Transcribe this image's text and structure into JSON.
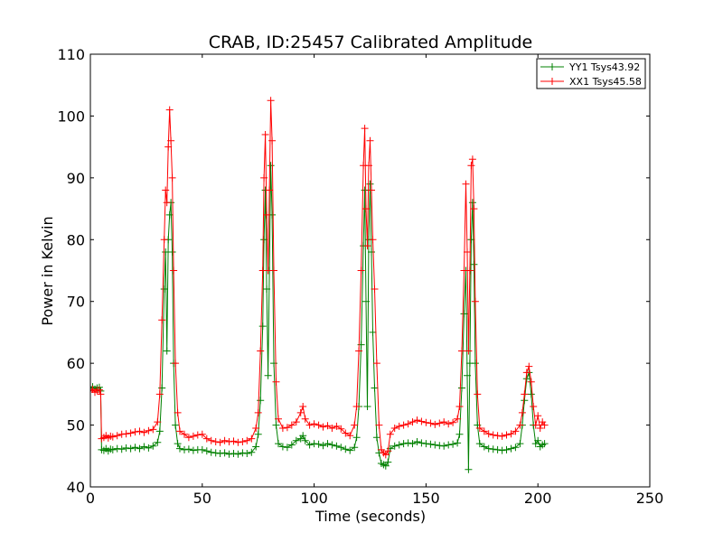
{
  "chart_data": {
    "type": "line",
    "title": "CRAB, ID:25457 Calibrated Amplitude",
    "xlabel": "Time (seconds)",
    "ylabel": "Power in Kelvin",
    "xlim": [
      0,
      250
    ],
    "ylim": [
      40,
      110
    ],
    "xticks": [
      0,
      50,
      100,
      150,
      200,
      250
    ],
    "yticks": [
      40,
      50,
      60,
      70,
      80,
      90,
      100,
      110
    ],
    "grid": false,
    "legend_position": "top-right",
    "marker": "+",
    "series": [
      {
        "name": "YY1 Tsys43.92",
        "color": "#008000",
        "points": [
          [
            0,
            56.0
          ],
          [
            1,
            56.2
          ],
          [
            2,
            55.8
          ],
          [
            3,
            56.0
          ],
          [
            4,
            56.1
          ],
          [
            4.6,
            55.5
          ],
          [
            5,
            46.0
          ],
          [
            6,
            45.9
          ],
          [
            7,
            46.2
          ],
          [
            8,
            45.8
          ],
          [
            9,
            46.1
          ],
          [
            10,
            46.0
          ],
          [
            12,
            46.2
          ],
          [
            14,
            46.1
          ],
          [
            16,
            46.3
          ],
          [
            18,
            46.2
          ],
          [
            20,
            46.4
          ],
          [
            22,
            46.2
          ],
          [
            24,
            46.5
          ],
          [
            26,
            46.3
          ],
          [
            28,
            46.6
          ],
          [
            30,
            47.2
          ],
          [
            31,
            49.0
          ],
          [
            32,
            56.0
          ],
          [
            33,
            72.0
          ],
          [
            33.6,
            78.0
          ],
          [
            34.2,
            62.0
          ],
          [
            34.8,
            80.0
          ],
          [
            35.4,
            84.0
          ],
          [
            36,
            86.0
          ],
          [
            36.6,
            78.0
          ],
          [
            37.2,
            60.0
          ],
          [
            38,
            50.0
          ],
          [
            39,
            47.0
          ],
          [
            40,
            46.2
          ],
          [
            42,
            46.0
          ],
          [
            44,
            46.1
          ],
          [
            46,
            45.9
          ],
          [
            48,
            46.0
          ],
          [
            50,
            46.0
          ],
          [
            52,
            45.8
          ],
          [
            54,
            45.6
          ],
          [
            56,
            45.5
          ],
          [
            58,
            45.4
          ],
          [
            60,
            45.5
          ],
          [
            62,
            45.3
          ],
          [
            64,
            45.4
          ],
          [
            66,
            45.3
          ],
          [
            68,
            45.5
          ],
          [
            70,
            45.4
          ],
          [
            72,
            45.6
          ],
          [
            74,
            46.5
          ],
          [
            75,
            48.5
          ],
          [
            76,
            54.0
          ],
          [
            77,
            66.0
          ],
          [
            77.6,
            80.0
          ],
          [
            78.2,
            88.0
          ],
          [
            78.8,
            72.0
          ],
          [
            79.4,
            58.0
          ],
          [
            80,
            75.0
          ],
          [
            80.6,
            92.0
          ],
          [
            81.2,
            84.0
          ],
          [
            82,
            60.0
          ],
          [
            83,
            50.0
          ],
          [
            84,
            47.0
          ],
          [
            86,
            46.5
          ],
          [
            88,
            46.4
          ],
          [
            90,
            46.8
          ],
          [
            92,
            47.5
          ],
          [
            94,
            47.8
          ],
          [
            95,
            48.3
          ],
          [
            96,
            47.5
          ],
          [
            98,
            46.8
          ],
          [
            100,
            47.0
          ],
          [
            102,
            46.9
          ],
          [
            104,
            46.7
          ],
          [
            106,
            47.0
          ],
          [
            108,
            46.8
          ],
          [
            110,
            46.6
          ],
          [
            112,
            46.4
          ],
          [
            114,
            46.1
          ],
          [
            116,
            45.9
          ],
          [
            118,
            46.4
          ],
          [
            119,
            48.0
          ],
          [
            120,
            53.0
          ],
          [
            121,
            63.0
          ],
          [
            122,
            79.0
          ],
          [
            122.6,
            88.0
          ],
          [
            123.2,
            70.0
          ],
          [
            123.8,
            53.0
          ],
          [
            124.4,
            80.0
          ],
          [
            125,
            89.0
          ],
          [
            125.6,
            78.0
          ],
          [
            126.2,
            65.0
          ],
          [
            127,
            56.0
          ],
          [
            128,
            48.0
          ],
          [
            129,
            45.5
          ],
          [
            130,
            43.8
          ],
          [
            131,
            43.6
          ],
          [
            132,
            43.4
          ],
          [
            133,
            44.0
          ],
          [
            134,
            46.2
          ],
          [
            136,
            46.6
          ],
          [
            138,
            46.8
          ],
          [
            140,
            47.0
          ],
          [
            142,
            47.1
          ],
          [
            144,
            47.0
          ],
          [
            146,
            47.3
          ],
          [
            148,
            47.1
          ],
          [
            150,
            47.0
          ],
          [
            152,
            46.9
          ],
          [
            154,
            46.8
          ],
          [
            156,
            46.7
          ],
          [
            158,
            46.6
          ],
          [
            160,
            46.8
          ],
          [
            162,
            46.9
          ],
          [
            164,
            47.1
          ],
          [
            165,
            48.5
          ],
          [
            166,
            56.0
          ],
          [
            167,
            68.0
          ],
          [
            167.8,
            75.0
          ],
          [
            168.4,
            58.0
          ],
          [
            169,
            42.8
          ],
          [
            169.6,
            60.0
          ],
          [
            170.2,
            80.0
          ],
          [
            170.8,
            86.0
          ],
          [
            171.4,
            76.0
          ],
          [
            172,
            60.0
          ],
          [
            173,
            50.0
          ],
          [
            174,
            47.0
          ],
          [
            176,
            46.5
          ],
          [
            178,
            46.2
          ],
          [
            180,
            46.1
          ],
          [
            182,
            46.0
          ],
          [
            184,
            45.9
          ],
          [
            186,
            46.0
          ],
          [
            188,
            46.2
          ],
          [
            190,
            46.4
          ],
          [
            192,
            47.0
          ],
          [
            193,
            50.0
          ],
          [
            194,
            54.0
          ],
          [
            195,
            57.5
          ],
          [
            196,
            58.5
          ],
          [
            197,
            55.0
          ],
          [
            198,
            50.0
          ],
          [
            199,
            47.0
          ],
          [
            200,
            47.5
          ],
          [
            201,
            46.5
          ],
          [
            202,
            46.8
          ],
          [
            203,
            47.0
          ]
        ]
      },
      {
        "name": "XX1 Tsys45.58",
        "color": "#ff0000",
        "points": [
          [
            0,
            55.5
          ],
          [
            1,
            55.8
          ],
          [
            2,
            55.3
          ],
          [
            3,
            55.6
          ],
          [
            4,
            55.7
          ],
          [
            4.6,
            55.0
          ],
          [
            5,
            47.8
          ],
          [
            6,
            48.0
          ],
          [
            7,
            48.3
          ],
          [
            8,
            47.9
          ],
          [
            9,
            48.2
          ],
          [
            10,
            48.1
          ],
          [
            12,
            48.3
          ],
          [
            14,
            48.5
          ],
          [
            16,
            48.6
          ],
          [
            18,
            48.7
          ],
          [
            20,
            48.9
          ],
          [
            22,
            49.0
          ],
          [
            24,
            48.8
          ],
          [
            26,
            49.1
          ],
          [
            28,
            49.3
          ],
          [
            30,
            50.5
          ],
          [
            31,
            55.0
          ],
          [
            32,
            67.0
          ],
          [
            33,
            80.0
          ],
          [
            33.6,
            88.0
          ],
          [
            34.2,
            86.0
          ],
          [
            34.8,
            95.0
          ],
          [
            35.4,
            101.0
          ],
          [
            36,
            96.0
          ],
          [
            36.6,
            90.0
          ],
          [
            37.2,
            75.0
          ],
          [
            38,
            60.0
          ],
          [
            39,
            52.0
          ],
          [
            40,
            49.0
          ],
          [
            42,
            48.5
          ],
          [
            44,
            48.0
          ],
          [
            46,
            48.2
          ],
          [
            48,
            48.4
          ],
          [
            50,
            48.5
          ],
          [
            52,
            47.8
          ],
          [
            54,
            47.5
          ],
          [
            56,
            47.3
          ],
          [
            58,
            47.2
          ],
          [
            60,
            47.5
          ],
          [
            62,
            47.3
          ],
          [
            64,
            47.4
          ],
          [
            66,
            47.2
          ],
          [
            68,
            47.3
          ],
          [
            70,
            47.5
          ],
          [
            72,
            47.8
          ],
          [
            74,
            49.5
          ],
          [
            75,
            52.0
          ],
          [
            76,
            62.0
          ],
          [
            77,
            75.0
          ],
          [
            77.6,
            90.0
          ],
          [
            78.2,
            97.0
          ],
          [
            78.8,
            84.0
          ],
          [
            79.4,
            75.0
          ],
          [
            80,
            88.0
          ],
          [
            80.6,
            102.5
          ],
          [
            81.2,
            96.0
          ],
          [
            82,
            75.0
          ],
          [
            83,
            57.0
          ],
          [
            84,
            51.0
          ],
          [
            86,
            49.5
          ],
          [
            88,
            49.6
          ],
          [
            90,
            50.0
          ],
          [
            92,
            50.5
          ],
          [
            94,
            52.0
          ],
          [
            95,
            53.0
          ],
          [
            96,
            51.0
          ],
          [
            98,
            50.0
          ],
          [
            100,
            50.2
          ],
          [
            102,
            50.0
          ],
          [
            104,
            49.7
          ],
          [
            106,
            49.9
          ],
          [
            108,
            49.5
          ],
          [
            110,
            49.8
          ],
          [
            112,
            49.4
          ],
          [
            114,
            48.7
          ],
          [
            116,
            48.3
          ],
          [
            118,
            50.0
          ],
          [
            119,
            53.0
          ],
          [
            120,
            62.0
          ],
          [
            121,
            75.0
          ],
          [
            122,
            92.0
          ],
          [
            122.6,
            98.0
          ],
          [
            123.2,
            85.0
          ],
          [
            123.8,
            79.0
          ],
          [
            124.4,
            92.0
          ],
          [
            125,
            96.0
          ],
          [
            125.6,
            88.0
          ],
          [
            126.2,
            80.0
          ],
          [
            127,
            72.0
          ],
          [
            128,
            60.0
          ],
          [
            129,
            50.0
          ],
          [
            130,
            46.0
          ],
          [
            131,
            45.5
          ],
          [
            132,
            45.2
          ],
          [
            133,
            45.8
          ],
          [
            134,
            48.5
          ],
          [
            136,
            49.5
          ],
          [
            138,
            49.8
          ],
          [
            140,
            50.0
          ],
          [
            142,
            50.2
          ],
          [
            144,
            50.5
          ],
          [
            146,
            50.8
          ],
          [
            148,
            50.6
          ],
          [
            150,
            50.4
          ],
          [
            152,
            50.3
          ],
          [
            154,
            50.1
          ],
          [
            156,
            50.3
          ],
          [
            158,
            50.5
          ],
          [
            160,
            50.2
          ],
          [
            162,
            50.4
          ],
          [
            164,
            51.0
          ],
          [
            165,
            53.0
          ],
          [
            166,
            62.0
          ],
          [
            167,
            75.0
          ],
          [
            167.8,
            89.0
          ],
          [
            168.4,
            78.0
          ],
          [
            169,
            62.0
          ],
          [
            169.6,
            75.0
          ],
          [
            170.2,
            92.0
          ],
          [
            170.8,
            93.0
          ],
          [
            171.4,
            85.0
          ],
          [
            172,
            70.0
          ],
          [
            173,
            55.0
          ],
          [
            174,
            49.5
          ],
          [
            176,
            49.0
          ],
          [
            178,
            48.6
          ],
          [
            180,
            48.4
          ],
          [
            182,
            48.3
          ],
          [
            184,
            48.2
          ],
          [
            186,
            48.4
          ],
          [
            188,
            48.6
          ],
          [
            190,
            49.0
          ],
          [
            192,
            50.0
          ],
          [
            193,
            52.0
          ],
          [
            194,
            55.0
          ],
          [
            195,
            58.5
          ],
          [
            196,
            59.5
          ],
          [
            197,
            57.0
          ],
          [
            198,
            53.0
          ],
          [
            199,
            50.0
          ],
          [
            200,
            51.5
          ],
          [
            201,
            49.5
          ],
          [
            202,
            50.5
          ],
          [
            203,
            50.0
          ]
        ]
      }
    ]
  }
}
